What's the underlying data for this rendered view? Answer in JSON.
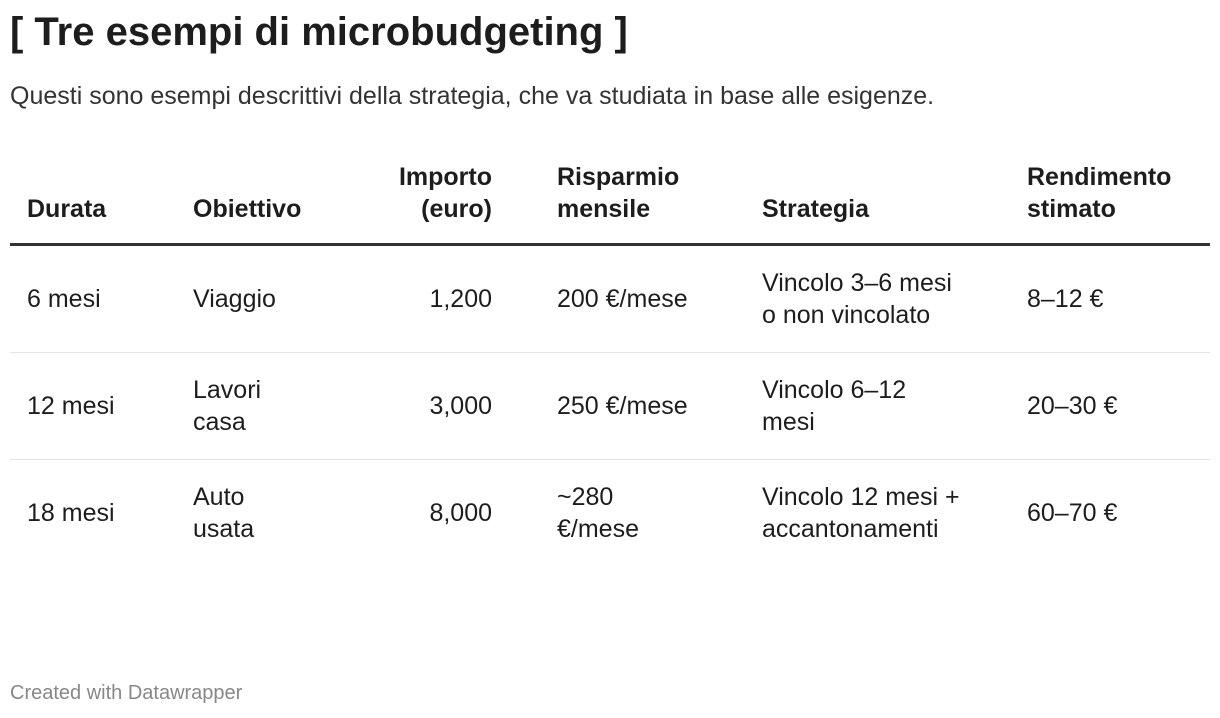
{
  "header": {
    "title": "[ Tre esempi di microbudgeting ]",
    "subtitle": "Questi sono esempi descrittivi della strategia, che va studiata in base alle esigenze."
  },
  "table": {
    "columns": [
      "Durata",
      "Obiettivo",
      "Importo (euro)",
      "Risparmio mensile",
      "Strategia",
      "Rendimento stimato"
    ],
    "rows": [
      [
        "6 mesi",
        "Viaggio",
        "1,200",
        "200 €/mese",
        "Vincolo 3–6 mesi o non vincolato",
        "8–12 €"
      ],
      [
        "12 mesi",
        "Lavori casa",
        "3,000",
        "250 €/mese",
        "Vincolo 6–12 mesi",
        "20–30 €"
      ],
      [
        "18 mesi",
        "Auto usata",
        "8,000",
        "~280 €/mese",
        "Vincolo 12 mesi + accantonamenti",
        "60–70 €"
      ]
    ]
  },
  "footer": {
    "credit": "Created with Datawrapper"
  }
}
